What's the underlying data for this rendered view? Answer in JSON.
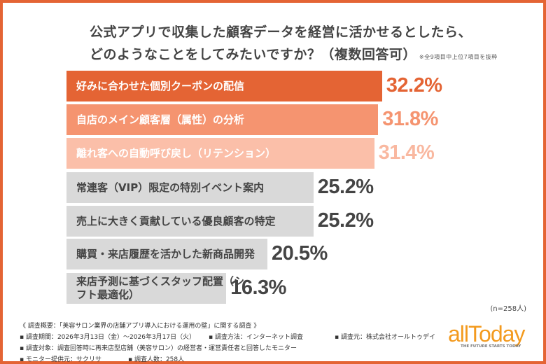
{
  "chart_data": {
    "type": "bar",
    "orientation": "horizontal",
    "title": "公式アプリで収集した顧客データを経営に活かせるとしたら、どのようなことをしてみたいですか？（複数回答可）",
    "title_lines": [
      "公式アプリで収集した顧客データを経営に活かせるとしたら、",
      "どのようなことをしてみたいですか？（複数回答可）"
    ],
    "note": "※全9項目中上位7項目を抜粋",
    "categories": [
      "好みに合わせた個別クーポンの配信",
      "自店のメイン顧客層（属性）の分析",
      "離れ客への自動呼び戻し（リテンション）",
      "常連客（VIP）限定の特別イベント案内",
      "売上に大きく貢献している優良顧客の特定",
      "購買・来店履歴を活かした新商品開発",
      "来店予測に基づくスタッフ配置（シフト最適化）"
    ],
    "values": [
      32.2,
      31.8,
      31.4,
      25.2,
      25.2,
      20.5,
      16.3
    ],
    "value_labels": [
      "32.2%",
      "31.8%",
      "31.4%",
      "25.2%",
      "25.2%",
      "20.5%",
      "16.3%"
    ],
    "unit": "%",
    "bar_colors": [
      "#e46434",
      "#f59470",
      "#fbbfa9",
      "#d9d9d9",
      "#d9d9d9",
      "#d9d9d9",
      "#d9d9d9"
    ],
    "label_colors": [
      "#e46434",
      "#f59470",
      "#f9b8a0",
      "#444444",
      "#444444",
      "#444444",
      "#444444"
    ],
    "text_colors": [
      "#ffffff",
      "#ffffff",
      "#ffffff",
      "#444444",
      "#444444",
      "#444444",
      "#444444"
    ],
    "sample_size": "(n=258人)"
  },
  "footer": {
    "overview": "《 調査概要：「美容サロン業界の店舗アプリ導入における運用の壁」に関する調査 》",
    "period": "▪ 調査期間：2026年3月13日（金）～2026年3月17日（火）",
    "method": "▪ 調査方法：インターネット調査",
    "source": "▪ 調査元：株式会社オールトゥデイ",
    "target": "▪ 調査対象：調査回答時に再来店型店舗（美容サロン）の経営者・運営責任者と回答したモニター",
    "provider": "▪ モニター提供元：サクリサ",
    "count": "▪ 調査人数：258人"
  },
  "logo": {
    "name": "allToday",
    "tagline": "THE FUTURE STARTS TODAY"
  },
  "colors": {
    "frame": "#e46434",
    "logo": "#f39a1e"
  }
}
